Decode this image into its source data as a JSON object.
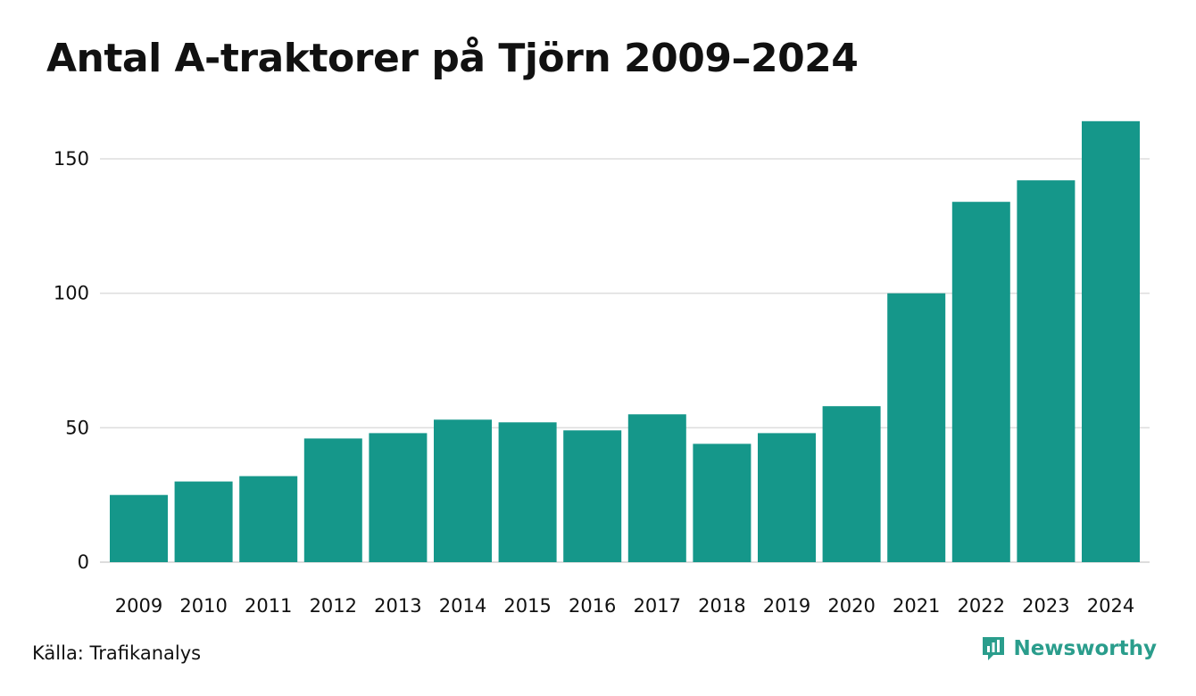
{
  "title": "Antal A-traktorer på Tjörn 2009–2024",
  "source": "Källa: Trafikanalys",
  "brand": {
    "name": "Newsworthy",
    "icon": "newsworthy-logo-icon",
    "color": "#2a9d8c"
  },
  "colors": {
    "bar": "#15978a",
    "grid": "#dddddd",
    "text": "#111111"
  },
  "chart_data": {
    "type": "bar",
    "title": "Antal A-traktorer på Tjörn 2009–2024",
    "xlabel": "",
    "ylabel": "",
    "categories": [
      "2009",
      "2010",
      "2011",
      "2012",
      "2013",
      "2014",
      "2015",
      "2016",
      "2017",
      "2018",
      "2019",
      "2020",
      "2021",
      "2022",
      "2023",
      "2024"
    ],
    "values": [
      25,
      30,
      32,
      46,
      48,
      53,
      52,
      49,
      55,
      44,
      48,
      58,
      100,
      134,
      142,
      164
    ],
    "ylim": [
      0,
      165
    ],
    "yticks": [
      0,
      50,
      100,
      150
    ],
    "grid": true,
    "legend": "none"
  }
}
